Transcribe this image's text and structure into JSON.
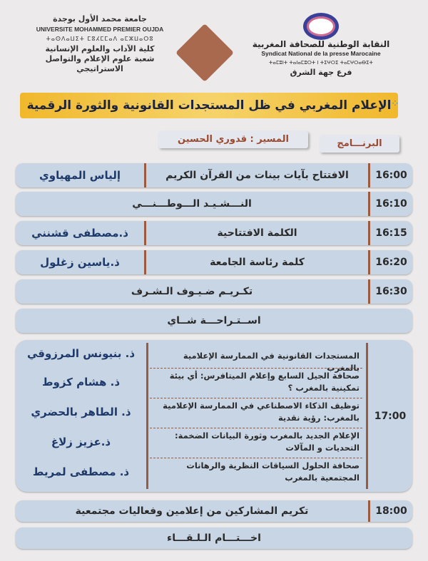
{
  "header": {
    "university": {
      "name_ar": "جامعة محمد الأول بوجدة",
      "name_fr": "UNIVERSITE MOHAMMED PREMIER OUJDA",
      "name_tifinagh": "ⵜⴰⵙⴷⴰⵡⵉⵜ ⵎⵓⵃⵎⵎⴰⴷ ⴰⵎⵣⵡⴰⵔⵓ",
      "faculty": "كلية الآداب والعلوم الإنسانية",
      "department": "شعبة علوم الإعلام والتواصل الاستراتيجي"
    },
    "syndicate": {
      "name_ar": "النقابة الوطنية للصحافة المغربية",
      "name_fr": "Syndicat National de la presse Marocaine",
      "name_tifinagh": "ⵜⴰⵎⵓⵏⵜ ⵜⴰⵏⴰⵎⵓⵔⵜ ⵏ ⵜⵉⵖⵔⵉ ⵜⴰⵎⵖⵔⴰⴱⵉⵜ",
      "branch": "فرع جهة الشرق"
    }
  },
  "title": "الإعلام المغربي في ظل المستجدات القانونية والثورة الرقمية",
  "moderator": "المسير : قدوري الحسين",
  "program_label": "البرنـــامج",
  "rows": [
    {
      "time": "16:00",
      "item": "الافتتاح بآيات بينات من القرآن الكريم",
      "speaker": "إلياس المهياوي"
    },
    {
      "time": "16:10",
      "item": "النـــشـيـد الـــوطـــنـــي"
    },
    {
      "time": "16:15",
      "item": "الكلمة الافتتاحية",
      "speaker": "ذ.مصطفى قشنني"
    },
    {
      "time": "16:20",
      "item": "كلمة رئاسة الجامعة",
      "speaker": "ذ.ياسين زغلول"
    },
    {
      "time": "16:30",
      "item": "تكـريـم ضـيـوف الـشـرف"
    }
  ],
  "break": "اســتـراحـــة شــاي",
  "session": {
    "time": "17:00",
    "talks": [
      {
        "title": "المستجدات القانونية في الممارسة الإعلامية بالمغرب",
        "speaker": "ذ. بنيونس المرزوقي"
      },
      {
        "title": "صحافة الجيل السابع وإعلام الميتافرس: أي بيئة تمكينية بالمغرب ؟",
        "speaker": "ذ. هشام كزوط"
      },
      {
        "title": "توظيف الذكاء الاصطناعي في الممارسة الإعلامية بالمغرب: رؤية نقدية",
        "speaker": "ذ. الطاهر بالحضري"
      },
      {
        "title": "الإعلام الجديد بالمغرب وثورة البيانات الضخمة: التحديات و المآلات",
        "speaker": "ذ.عزيز زلاغ"
      },
      {
        "title": "صحافة الحلول السياقات النظرية والرهانات المجتمعية بالمغرب",
        "speaker": "ذ. مصطفى لمريط"
      }
    ]
  },
  "honor": {
    "time": "18:00",
    "item": "تكريم المشاركين من إعلامين وفعاليات مجتمعية"
  },
  "closing": "اخـــتـــام الـلـقـــاء",
  "colors": {
    "title_bar": "#f0b82c",
    "row_bg": "#c8d5e4",
    "separator": "#9b5a3c"
  }
}
